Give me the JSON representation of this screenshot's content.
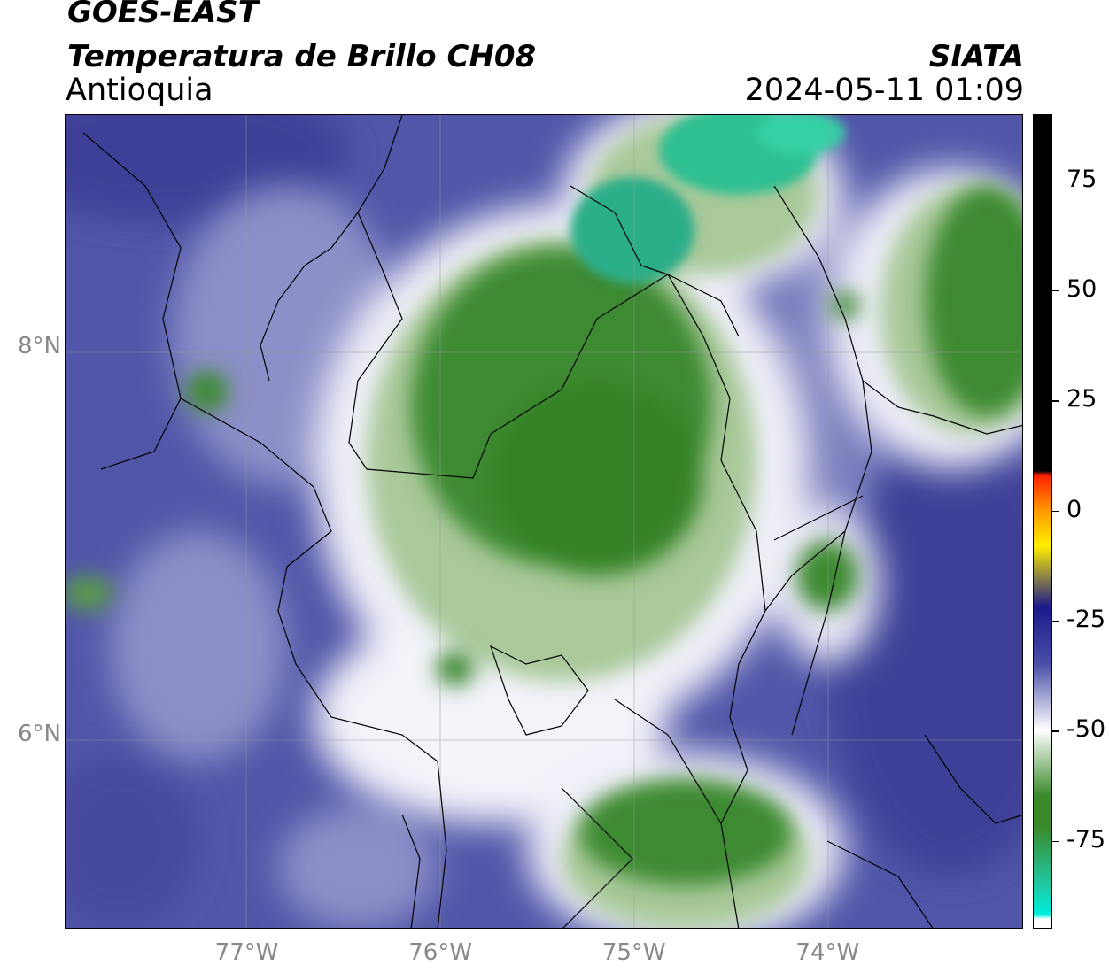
{
  "header": {
    "satellite": "GOES-EAST",
    "product": "Temperatura de Brillo CH08",
    "region": "Antioquia",
    "organization": "SIATA",
    "datetime": "2024-05-11 01:09"
  },
  "map": {
    "lon_range": [
      -77.95,
      -73.0
    ],
    "lat_range": [
      5.0,
      9.2
    ],
    "lon_ticks": [
      {
        "value": -77,
        "label": "77°W"
      },
      {
        "value": -76,
        "label": "76°W"
      },
      {
        "value": -75,
        "label": "75°W"
      },
      {
        "value": -74,
        "label": "74°W"
      }
    ],
    "lat_ticks": [
      {
        "value": 8,
        "label": "8°N"
      },
      {
        "value": 6,
        "label": "6°N"
      }
    ],
    "grid": true
  },
  "colorbar": {
    "ticks": [
      {
        "value": 75,
        "label": "75"
      },
      {
        "value": 50,
        "label": "50"
      },
      {
        "value": 25,
        "label": "25"
      },
      {
        "value": 0,
        "label": "0"
      },
      {
        "value": -25,
        "label": "-25"
      },
      {
        "value": -50,
        "label": "-50"
      },
      {
        "value": -75,
        "label": "-75"
      }
    ],
    "range": [
      -95,
      90
    ],
    "colors": {
      "hot": "#000000",
      "red": "#ff2000",
      "orange": "#ff9900",
      "yellow": "#ffee00",
      "navy": "#1a1a8a",
      "blue": "#4a4fa8",
      "white": "#ffffff",
      "green": "#3a8a2a",
      "teal": "#20c8a0",
      "cyan": "#00eedd"
    }
  }
}
